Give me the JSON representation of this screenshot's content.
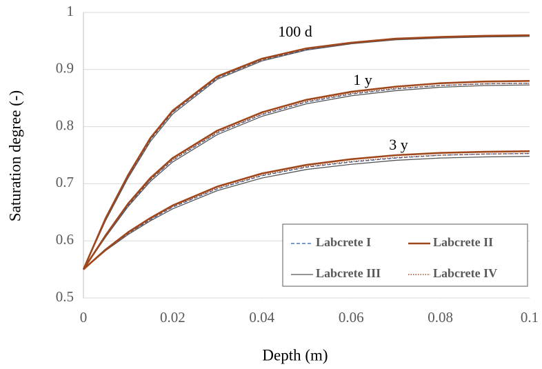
{
  "chart_data": {
    "type": "line",
    "x_label": "Depth (m)",
    "y_label": "Saturation degree (-)",
    "x": [
      0,
      0.005,
      0.01,
      0.015,
      0.02,
      0.03,
      0.04,
      0.05,
      0.06,
      0.07,
      0.08,
      0.09,
      0.1
    ],
    "annotations": [
      "100 d",
      "1 y",
      "3 y"
    ],
    "series": [
      {
        "name": "Labcrete I",
        "color": "#2e5fa8",
        "style": "dashed",
        "values": [
          [
            0.55,
            0.638,
            0.712,
            0.777,
            0.825,
            0.885,
            0.917,
            0.935,
            0.946,
            0.953,
            0.956,
            0.958,
            0.959
          ],
          [
            0.55,
            0.608,
            0.662,
            0.707,
            0.741,
            0.789,
            0.821,
            0.843,
            0.857,
            0.866,
            0.872,
            0.875,
            0.876
          ],
          [
            0.55,
            0.584,
            0.613,
            0.637,
            0.659,
            0.691,
            0.714,
            0.729,
            0.738,
            0.745,
            0.75,
            0.752,
            0.753
          ]
        ]
      },
      {
        "name": "Labcrete II",
        "color": "#a0461b",
        "style": "thick",
        "values": [
          [
            0.55,
            0.64,
            0.715,
            0.78,
            0.828,
            0.888,
            0.919,
            0.937,
            0.947,
            0.954,
            0.957,
            0.959,
            0.96
          ],
          [
            0.55,
            0.61,
            0.665,
            0.71,
            0.745,
            0.793,
            0.825,
            0.847,
            0.861,
            0.87,
            0.876,
            0.879,
            0.88
          ],
          [
            0.55,
            0.585,
            0.615,
            0.64,
            0.662,
            0.695,
            0.718,
            0.733,
            0.743,
            0.75,
            0.754,
            0.756,
            0.757
          ]
        ]
      },
      {
        "name": "Labcrete III",
        "color": "#555555",
        "style": "solid",
        "values": [
          [
            0.55,
            0.636,
            0.71,
            0.774,
            0.822,
            0.883,
            0.915,
            0.934,
            0.945,
            0.952,
            0.955,
            0.957,
            0.958
          ],
          [
            0.55,
            0.607,
            0.66,
            0.704,
            0.738,
            0.786,
            0.818,
            0.84,
            0.854,
            0.863,
            0.869,
            0.872,
            0.873
          ],
          [
            0.55,
            0.583,
            0.611,
            0.635,
            0.656,
            0.688,
            0.71,
            0.725,
            0.734,
            0.741,
            0.745,
            0.747,
            0.748
          ]
        ]
      },
      {
        "name": "Labcrete IV",
        "color": "#a0461b",
        "style": "dotted",
        "values": [
          [
            0.55,
            0.639,
            0.713,
            0.778,
            0.826,
            0.886,
            0.917,
            0.936,
            0.946,
            0.953,
            0.956,
            0.958,
            0.959
          ],
          [
            0.55,
            0.609,
            0.663,
            0.707,
            0.742,
            0.79,
            0.822,
            0.844,
            0.858,
            0.867,
            0.872,
            0.875,
            0.876
          ],
          [
            0.55,
            0.584,
            0.613,
            0.638,
            0.66,
            0.692,
            0.715,
            0.73,
            0.739,
            0.746,
            0.75,
            0.752,
            0.753
          ]
        ]
      }
    ],
    "xlim": [
      0,
      0.1
    ],
    "xticks": [
      0,
      0.02,
      0.04,
      0.06,
      0.08,
      0.1
    ],
    "ylim": [
      0.5,
      1
    ],
    "yticks": [
      0.5,
      0.6,
      0.7,
      0.8,
      0.9,
      1
    ],
    "grid": true,
    "legend": "lower right"
  }
}
